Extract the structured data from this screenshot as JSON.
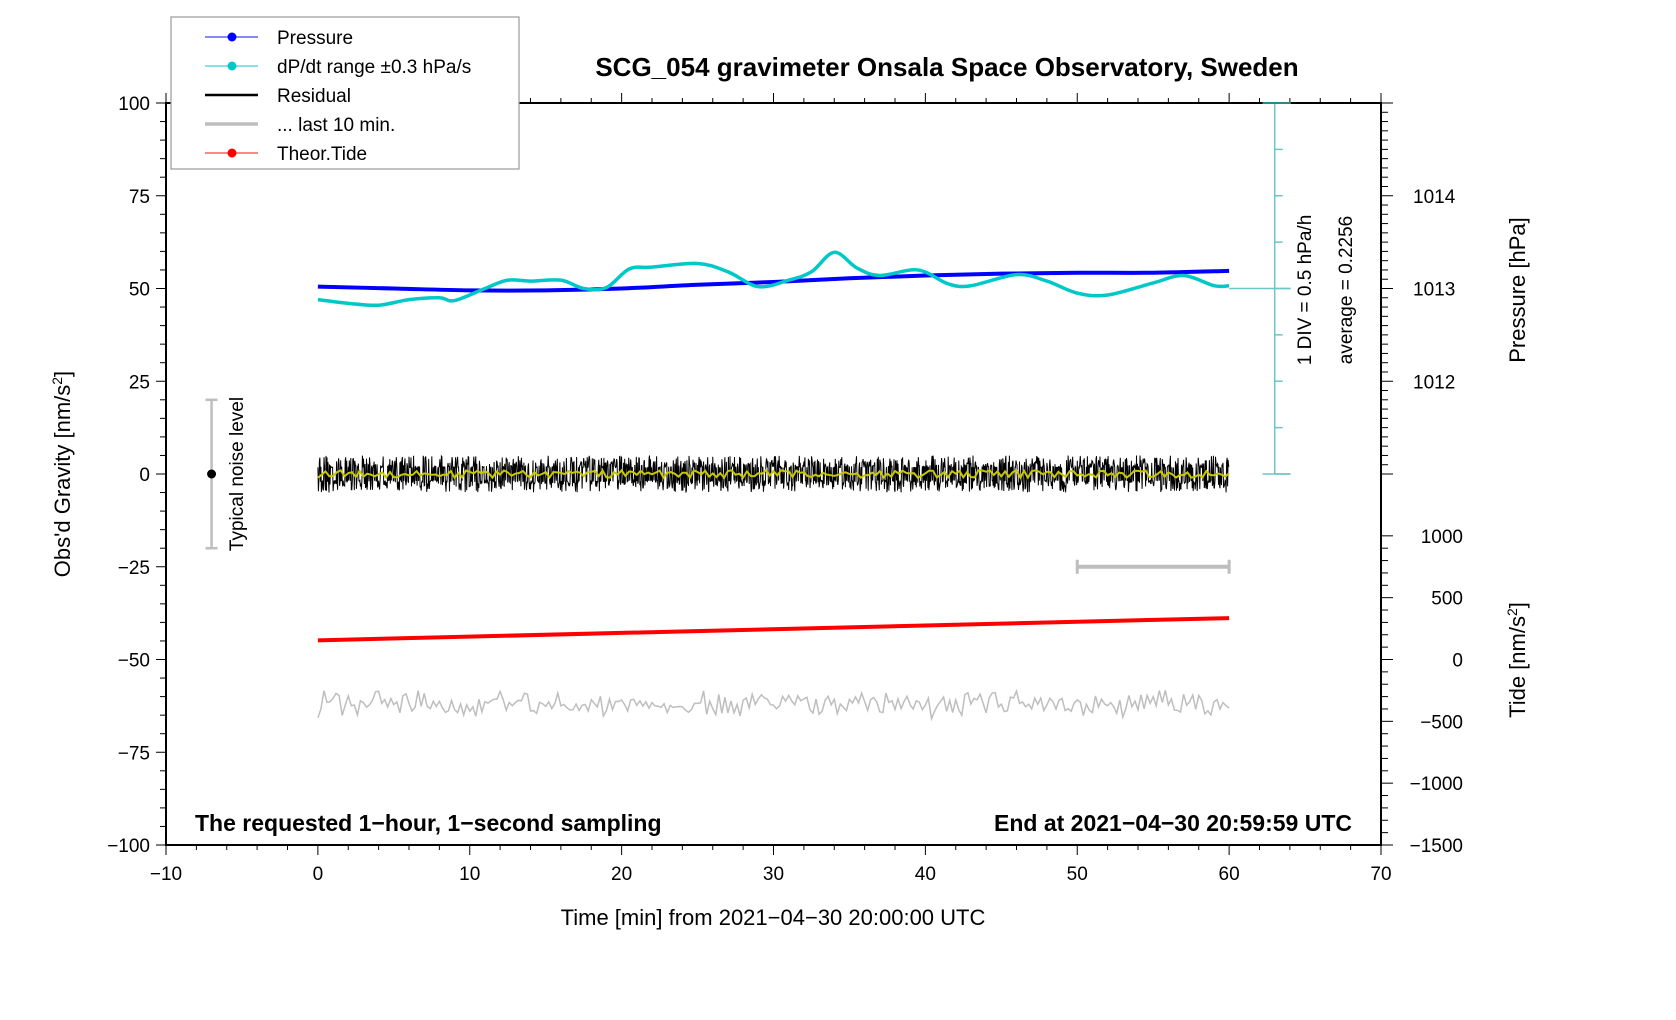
{
  "chart_data": {
    "type": "line",
    "title": "SCG_054 gravimeter Onsala Space Observatory, Sweden",
    "xlabel": "Time [min] from 2021−04−30 20:00:00 UTC",
    "ylabel": "Obs'd Gravity [nm/s",
    "ylabel_sup": "2",
    "ylabel_suffix": "]",
    "xlim": [
      -10,
      70
    ],
    "ylim": [
      -100,
      100
    ],
    "x_ticks": [
      "−10",
      "0",
      "10",
      "20",
      "30",
      "40",
      "50",
      "60",
      "70"
    ],
    "x_tick_values": [
      -10,
      0,
      10,
      20,
      30,
      40,
      50,
      60,
      70
    ],
    "y_ticks": [
      "100",
      "75",
      "50",
      "25",
      "0",
      "−25",
      "−50",
      "−75",
      "−100"
    ],
    "y_tick_values": [
      100,
      75,
      50,
      25,
      0,
      -25,
      -50,
      -75,
      -100
    ],
    "grid": false,
    "right_axis_pressure": {
      "label": "Pressure [hPa]",
      "range": [
        1011,
        1015
      ],
      "ticks": [
        "1014",
        "1013",
        "1012"
      ],
      "tick_values": [
        1014,
        1013,
        1012
      ]
    },
    "right_axis_tide": {
      "label": "Tide [nm/s",
      "label_sup": "2",
      "label_suffix": "]",
      "range": [
        -1500,
        1000
      ],
      "ticks": [
        "1000",
        "500",
        "0",
        "−500",
        "−1000",
        "−1500"
      ],
      "tick_values": [
        1000,
        500,
        0,
        -500,
        -1000,
        -1500
      ]
    },
    "legend": {
      "placement": "top-left",
      "entries": [
        {
          "label": "Pressure",
          "color": "#0000ff",
          "marker": "dot"
        },
        {
          "label": "dP/dt range ±0.3 hPa/s",
          "color": "#00c8c8",
          "marker": "dot"
        },
        {
          "label": "Residual",
          "color": "#000000",
          "marker": "line"
        },
        {
          "label": "... last 10 min.",
          "color": "#bebebe",
          "marker": "thick-line"
        },
        {
          "label": "Theor.Tide",
          "color": "#ff0000",
          "marker": "dot"
        }
      ]
    },
    "series": [
      {
        "name": "Pressure",
        "axis": "pressure_hPa",
        "color": "#0000ff",
        "x": [
          0,
          5,
          10,
          15,
          20,
          25,
          30,
          35,
          40,
          45,
          50,
          55,
          60
        ],
        "values": [
          1013.02,
          1013.0,
          1012.98,
          1012.98,
          1013.0,
          1013.04,
          1013.07,
          1013.11,
          1013.14,
          1013.16,
          1013.17,
          1013.17,
          1013.19
        ]
      },
      {
        "name": "dP/dt",
        "axis": "dPdt_div",
        "color": "#00c8c8",
        "units": "hPa/h (1 DIV = 0.5 hPa/h, zero line at 1013 hPa level)",
        "x": [
          0,
          2,
          4,
          6,
          8,
          9,
          11,
          12.5,
          14,
          16,
          17.5,
          19,
          20.5,
          22,
          25,
          27,
          29,
          31,
          32.5,
          34,
          35.5,
          37,
          39.5,
          41.5,
          43,
          46,
          48,
          50,
          52,
          55,
          57,
          59,
          60
        ],
        "values": [
          -0.12,
          -0.16,
          -0.18,
          -0.12,
          -0.1,
          -0.13,
          0.0,
          0.09,
          0.08,
          0.09,
          0.0,
          0.01,
          0.21,
          0.23,
          0.27,
          0.18,
          0.02,
          0.09,
          0.18,
          0.39,
          0.22,
          0.14,
          0.2,
          0.05,
          0.03,
          0.15,
          0.08,
          -0.05,
          -0.07,
          0.06,
          0.14,
          0.03,
          0.03
        ]
      },
      {
        "name": "Residual",
        "axis": "gravity_nm_s2",
        "color": "#000000",
        "x_range": [
          0,
          60
        ],
        "description": "1-second noise around 0, amplitude about ±5 nm/s2",
        "mean": 0,
        "amplitude": 5
      },
      {
        "name": "Residual smoothed",
        "axis": "gravity_nm_s2",
        "color": "#c8c800",
        "x_range": [
          0,
          60
        ],
        "mean": 0,
        "amplitude": 1
      },
      {
        "name": "... last 10 min.",
        "axis": "gravity_nm_s2",
        "color": "#bebebe",
        "x_range": [
          0,
          60
        ],
        "offset": -62,
        "amplitude": 4
      },
      {
        "name": "Theor.Tide",
        "axis": "tide_nm_s2",
        "color": "#ff0000",
        "x": [
          0,
          60
        ],
        "values": [
          155,
          335
        ]
      }
    ],
    "annotations": {
      "noise_label": "Typical noise level",
      "noise_range": [
        -20,
        20
      ],
      "noise_x": -7,
      "last10_bar": {
        "x": [
          50,
          60
        ],
        "y": -25
      },
      "div_label": "1 DIV = 0.5 hPa/h",
      "average_label": "average = 0.2256",
      "bottom_left": "The requested 1−hour, 1−second sampling",
      "bottom_right": "End at 2021−04−30 20:59:59 UTC"
    }
  }
}
